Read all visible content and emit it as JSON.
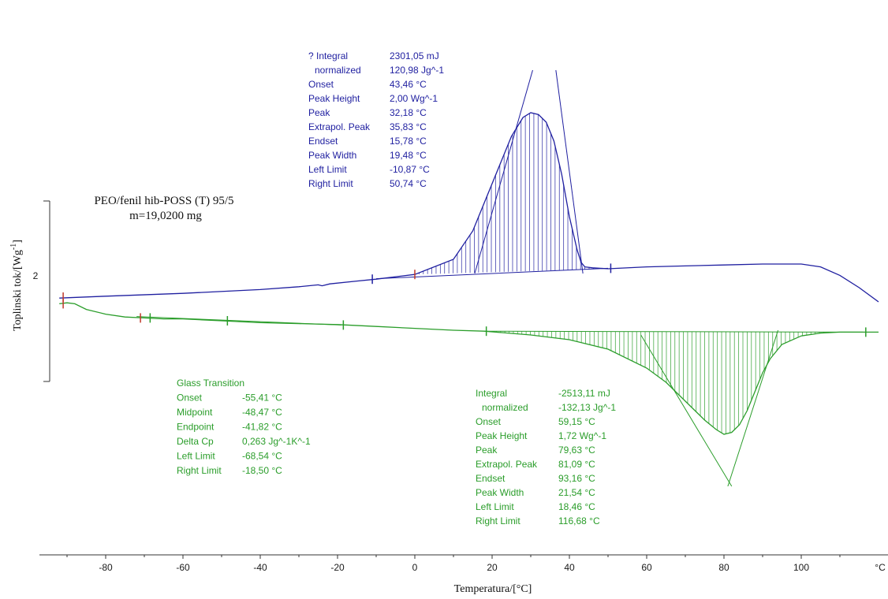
{
  "chart_data": {
    "type": "line",
    "title": "PEO/fenil hib-POSS (T) 95/5",
    "subtitle": "m=19,0200 mg",
    "xlabel": "Temperatura/[°C]",
    "ylabel": "Toplinski tok/[Wg-1]",
    "ylabel_superscript": "-1",
    "ylabel_base": "Toplinski tok/[Wg",
    "ylabel_close": "]",
    "x_unit_label": "°C",
    "y_scale_label": "2",
    "xlim": [
      -92,
      120
    ],
    "x_ticks": [
      -80,
      -60,
      -40,
      -20,
      0,
      20,
      40,
      60,
      80,
      100
    ],
    "colors": {
      "cooling": "#1f1fa0",
      "heating": "#2a9d2a",
      "marker": "#c0392b",
      "axis": "#333333"
    },
    "series": [
      {
        "name": "",
        "color": "#1f1fa0",
        "x": [
          -92,
          -80,
          -60,
          -40,
          -30,
          -25,
          -24,
          -22,
          -15,
          -10,
          0,
          10,
          15,
          20,
          25,
          28,
          30,
          32,
          34,
          36,
          38,
          40,
          42,
          43,
          44,
          46,
          50,
          60,
          70,
          80,
          90,
          100,
          105,
          110,
          115,
          120
        ],
        "y": [
          2.04,
          2.06,
          2.09,
          2.13,
          2.16,
          2.18,
          2.17,
          2.19,
          2.22,
          2.24,
          2.29,
          2.45,
          2.75,
          3.25,
          3.75,
          3.95,
          4.0,
          3.98,
          3.9,
          3.7,
          3.35,
          2.9,
          2.55,
          2.42,
          2.37,
          2.36,
          2.35,
          2.37,
          2.38,
          2.39,
          2.4,
          2.4,
          2.37,
          2.28,
          2.15,
          2.0
        ]
      },
      {
        "name": "",
        "color": "#2a9d2a",
        "x": [
          -92,
          -90,
          -88,
          -85,
          -80,
          -75,
          -70,
          -65,
          -60,
          -55,
          -50,
          -40,
          -30,
          -20,
          -10,
          0,
          10,
          18,
          30,
          40,
          50,
          60,
          65,
          70,
          75,
          78,
          80,
          82,
          84,
          86,
          88,
          90,
          92,
          95,
          100,
          105,
          110,
          115,
          120
        ],
        "y": [
          1.98,
          1.99,
          1.98,
          1.92,
          1.87,
          1.84,
          1.83,
          1.82,
          1.82,
          1.81,
          1.8,
          1.78,
          1.77,
          1.76,
          1.74,
          1.72,
          1.7,
          1.69,
          1.65,
          1.6,
          1.5,
          1.3,
          1.15,
          0.95,
          0.75,
          0.65,
          0.6,
          0.62,
          0.7,
          0.85,
          1.05,
          1.25,
          1.4,
          1.55,
          1.64,
          1.67,
          1.68,
          1.68,
          1.68
        ]
      }
    ],
    "annotations": {
      "cooling_peak": {
        "labels": [
          "? Integral",
          "normalized",
          "Onset",
          "Peak Height",
          "Peak",
          "Extrapol. Peak",
          "Endset",
          "Peak Width",
          "Left Limit",
          "Right Limit"
        ],
        "values": [
          "2301,05 mJ",
          "120,98 Jg^-1",
          "43,46 °C",
          "2,00 Wg^-1",
          "32,18 °C",
          "35,83 °C",
          "15,78 °C",
          "19,48 °C",
          "-10,87 °C",
          "50,74 °C"
        ]
      },
      "glass_transition": {
        "title": "Glass Transition",
        "labels": [
          "Onset",
          "Midpoint",
          "Endpoint",
          "Delta Cp",
          "Left Limit",
          "Right Limit"
        ],
        "values": [
          "-55,41 °C",
          "-48,47 °C",
          "-41,82 °C",
          "0,263 Jg^-1K^-1",
          "-68,54 °C",
          "-18,50 °C"
        ]
      },
      "melting_peak": {
        "labels": [
          "Integral",
          "normalized",
          "Onset",
          "Peak Height",
          "Peak",
          "Extrapol. Peak",
          "Endset",
          "Peak Width",
          "Left Limit",
          "Right Limit"
        ],
        "values": [
          "-2513,11 mJ",
          "-132,13 Jg^-1",
          "59,15 °C",
          "1,72 Wg^-1",
          "79,63 °C",
          "81,09 °C",
          "93,16 °C",
          "21,54 °C",
          "18,46 °C",
          "116,68 °C"
        ]
      }
    },
    "grid": false,
    "legend": "none"
  }
}
